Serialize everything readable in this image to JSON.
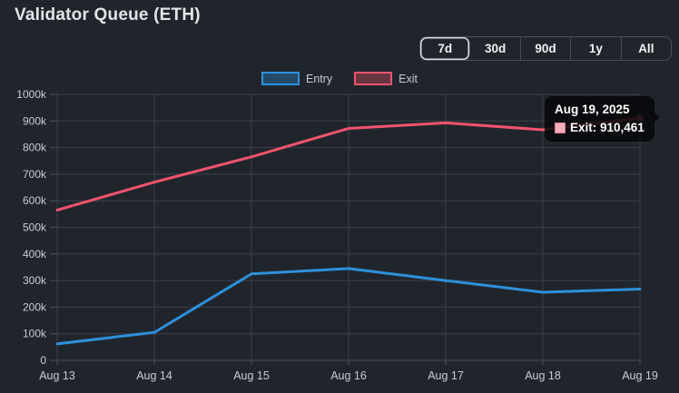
{
  "header": {
    "title": "Validator Queue (ETH)"
  },
  "range_buttons": [
    {
      "label": "7d",
      "selected": true
    },
    {
      "label": "30d",
      "selected": false
    },
    {
      "label": "90d",
      "selected": false
    },
    {
      "label": "1y",
      "selected": false
    },
    {
      "label": "All",
      "selected": false
    }
  ],
  "legend": [
    {
      "label": "Entry",
      "color": "#2e90da"
    },
    {
      "label": "Exit",
      "color": "#f2536f"
    }
  ],
  "tooltip": {
    "date": "Aug 19, 2025",
    "series": "Exit",
    "value": "910,461",
    "text": "Exit: 910,461"
  },
  "chart_data": {
    "type": "line",
    "title": "Validator Queue (ETH)",
    "categories": [
      "Aug 13",
      "Aug 14",
      "Aug 15",
      "Aug 16",
      "Aug 17",
      "Aug 18",
      "Aug 19"
    ],
    "series": [
      {
        "name": "Entry",
        "color": "#2e90da",
        "values": [
          62000,
          105000,
          325000,
          345000,
          300000,
          256000,
          268000
        ]
      },
      {
        "name": "Exit",
        "color": "#f2536f",
        "values": [
          565000,
          670000,
          765000,
          872000,
          893000,
          867000,
          910461
        ]
      }
    ],
    "ylim": [
      0,
      1000000
    ],
    "ytick_values": [
      0,
      100000,
      200000,
      300000,
      400000,
      500000,
      600000,
      700000,
      800000,
      900000,
      1000000
    ],
    "ytick_labels": [
      "0",
      "100k",
      "200k",
      "300k",
      "400k",
      "500k",
      "600k",
      "700k",
      "800k",
      "900k",
      "1000k"
    ],
    "xlabel": "",
    "ylabel": "",
    "grid": true,
    "legend_position": "top",
    "highlighted_point": {
      "series": "Exit",
      "category": "Aug 19",
      "value": 910461
    }
  },
  "colors": {
    "background": "#20252c",
    "gridline": "#3a4049",
    "axis": "#4b515a",
    "axis_text": "#c9ccd1",
    "entry": "#2e90da",
    "exit": "#f2536f",
    "tooltip_bg": "#07080a",
    "selected_button_border": "#dcdfe3"
  }
}
